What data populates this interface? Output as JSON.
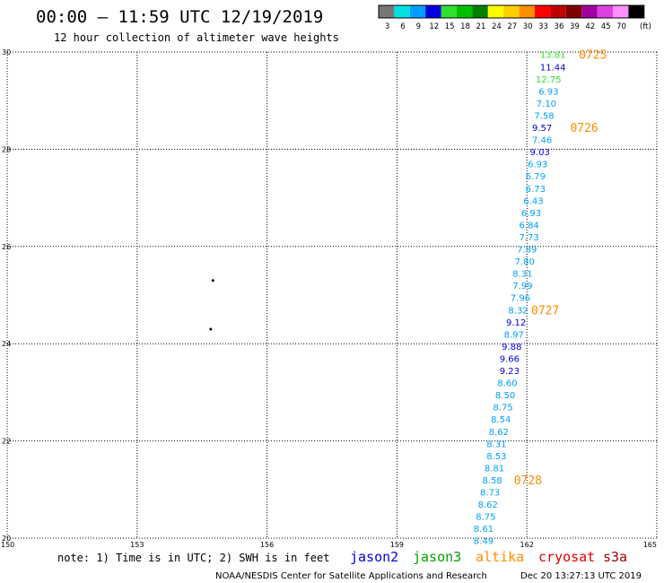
{
  "header": {
    "title": "00:00 – 11:59 UTC 12/19/2019",
    "subtitle": "12 hour collection of altimeter wave heights"
  },
  "colorbar": {
    "unit": "(ft)",
    "bins": [
      {
        "label": "3",
        "color": "#777777"
      },
      {
        "label": "6",
        "color": "#00e0e0"
      },
      {
        "label": "9",
        "color": "#00a0ff"
      },
      {
        "label": "12",
        "color": "#0000e0"
      },
      {
        "label": "15",
        "color": "#30e030"
      },
      {
        "label": "18",
        "color": "#00c000"
      },
      {
        "label": "21",
        "color": "#008000"
      },
      {
        "label": "24",
        "color": "#ffff00"
      },
      {
        "label": "27",
        "color": "#ffd000"
      },
      {
        "label": "30",
        "color": "#ff9000"
      },
      {
        "label": "33",
        "color": "#ff0000"
      },
      {
        "label": "36",
        "color": "#c00000"
      },
      {
        "label": "39",
        "color": "#800000"
      },
      {
        "label": "42",
        "color": "#a000a0"
      },
      {
        "label": "45",
        "color": "#e040e0"
      },
      {
        "label": "70",
        "color": "#ff90ff"
      },
      {
        "label": "",
        "color": "#000000"
      }
    ]
  },
  "chart_data": {
    "type": "scatter",
    "x_ticks": [
      "150",
      "153",
      "156",
      "159",
      "162",
      "165"
    ],
    "y_ticks": [
      "30",
      "28",
      "26",
      "24",
      "22",
      "20"
    ],
    "xlim": [
      150,
      165
    ],
    "ylim": [
      20,
      30
    ],
    "grid": true,
    "points": [
      {
        "lon": 162.6,
        "lat": 29.95,
        "label": "13.81",
        "color": "#30e030"
      },
      {
        "lon": 162.6,
        "lat": 29.7,
        "label": "11.44",
        "color": "#0000e0"
      },
      {
        "lon": 162.5,
        "lat": 29.45,
        "label": "12.75",
        "color": "#30e030"
      },
      {
        "lon": 162.5,
        "lat": 29.2,
        "label": "6.93",
        "color": "#00a0ff"
      },
      {
        "lon": 162.45,
        "lat": 28.95,
        "label": "7.10",
        "color": "#00a0ff"
      },
      {
        "lon": 162.4,
        "lat": 28.7,
        "label": "7.58",
        "color": "#00a0ff"
      },
      {
        "lon": 162.35,
        "lat": 28.45,
        "label": "9.57",
        "color": "#0000e0"
      },
      {
        "lon": 162.35,
        "lat": 28.2,
        "label": "7.46",
        "color": "#00a0ff"
      },
      {
        "lon": 162.3,
        "lat": 27.95,
        "label": "9.03",
        "color": "#0000e0"
      },
      {
        "lon": 162.25,
        "lat": 27.7,
        "label": "6.93",
        "color": "#00a0ff"
      },
      {
        "lon": 162.2,
        "lat": 27.45,
        "label": "6.79",
        "color": "#00a0ff"
      },
      {
        "lon": 162.2,
        "lat": 27.2,
        "label": "6.73",
        "color": "#00a0ff"
      },
      {
        "lon": 162.15,
        "lat": 26.95,
        "label": "6.43",
        "color": "#00a0ff"
      },
      {
        "lon": 162.1,
        "lat": 26.7,
        "label": "6.93",
        "color": "#00a0ff"
      },
      {
        "lon": 162.05,
        "lat": 26.45,
        "label": "6.84",
        "color": "#00a0ff"
      },
      {
        "lon": 162.05,
        "lat": 26.2,
        "label": "7.73",
        "color": "#00a0ff"
      },
      {
        "lon": 162.0,
        "lat": 25.95,
        "label": "7.89",
        "color": "#00a0ff"
      },
      {
        "lon": 161.95,
        "lat": 25.7,
        "label": "7.80",
        "color": "#00a0ff"
      },
      {
        "lon": 161.9,
        "lat": 25.45,
        "label": "8.31",
        "color": "#00a0ff"
      },
      {
        "lon": 161.9,
        "lat": 25.2,
        "label": "7.99",
        "color": "#00a0ff"
      },
      {
        "lon": 161.85,
        "lat": 24.95,
        "label": "7.96",
        "color": "#00a0ff"
      },
      {
        "lon": 161.8,
        "lat": 24.7,
        "label": "8.32",
        "color": "#00a0ff"
      },
      {
        "lon": 161.75,
        "lat": 24.45,
        "label": "9.12",
        "color": "#0000e0"
      },
      {
        "lon": 161.7,
        "lat": 24.2,
        "label": "8.97",
        "color": "#00a0ff"
      },
      {
        "lon": 161.65,
        "lat": 23.95,
        "label": "9.88",
        "color": "#0000e0"
      },
      {
        "lon": 161.6,
        "lat": 23.7,
        "label": "9.66",
        "color": "#0000e0"
      },
      {
        "lon": 161.6,
        "lat": 23.45,
        "label": "9.23",
        "color": "#0000e0"
      },
      {
        "lon": 161.55,
        "lat": 23.2,
        "label": "8.60",
        "color": "#00a0ff"
      },
      {
        "lon": 161.5,
        "lat": 22.95,
        "label": "8.50",
        "color": "#00a0ff"
      },
      {
        "lon": 161.45,
        "lat": 22.7,
        "label": "8.75",
        "color": "#00a0ff"
      },
      {
        "lon": 161.4,
        "lat": 22.45,
        "label": "8.54",
        "color": "#00a0ff"
      },
      {
        "lon": 161.35,
        "lat": 22.2,
        "label": "8.62",
        "color": "#00a0ff"
      },
      {
        "lon": 161.3,
        "lat": 21.95,
        "label": "8.31",
        "color": "#00a0ff"
      },
      {
        "lon": 161.3,
        "lat": 21.7,
        "label": "8.53",
        "color": "#00a0ff"
      },
      {
        "lon": 161.25,
        "lat": 21.45,
        "label": "8.81",
        "color": "#00a0ff"
      },
      {
        "lon": 161.2,
        "lat": 21.2,
        "label": "8.58",
        "color": "#00a0ff"
      },
      {
        "lon": 161.15,
        "lat": 20.95,
        "label": "8.73",
        "color": "#00a0ff"
      },
      {
        "lon": 161.1,
        "lat": 20.7,
        "label": "8.62",
        "color": "#00a0ff"
      },
      {
        "lon": 161.05,
        "lat": 20.45,
        "label": "8.75",
        "color": "#00a0ff"
      },
      {
        "lon": 161.0,
        "lat": 20.2,
        "label": "8.61",
        "color": "#00a0ff"
      },
      {
        "lon": 161.0,
        "lat": 19.95,
        "label": "8.49",
        "color": "#00a0ff"
      }
    ],
    "pass_labels": [
      {
        "lon": 163.2,
        "lat": 29.95,
        "text": "0725"
      },
      {
        "lon": 163.0,
        "lat": 28.45,
        "text": "0726"
      },
      {
        "lon": 162.1,
        "lat": 24.7,
        "text": "0727"
      },
      {
        "lon": 161.7,
        "lat": 21.2,
        "text": "0728"
      }
    ],
    "markers": [
      {
        "lon": 154.75,
        "lat": 25.3
      },
      {
        "lon": 154.7,
        "lat": 24.3
      }
    ]
  },
  "footer": {
    "note": "note: 1) Time is in UTC; 2) SWH is in feet",
    "satellites": [
      {
        "name": "jason2",
        "color": "#0000e0"
      },
      {
        "name": "jason3",
        "color": "#00a000"
      },
      {
        "name": "altika",
        "color": "#ff9000"
      },
      {
        "name": "cryosat",
        "color": "#e00000"
      },
      {
        "name": "s3a",
        "color": "#a00000"
      }
    ],
    "credit_left": "NOAA/NESDIS Center for Satellite Applications and Research",
    "credit_right": "Dec 20 13:27:13 UTC 2019"
  }
}
